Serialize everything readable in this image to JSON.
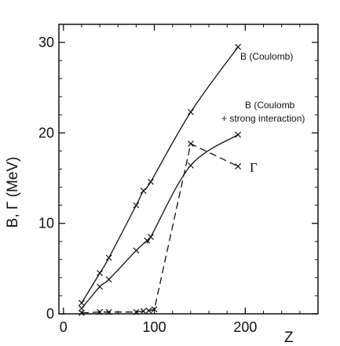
{
  "chart_data": {
    "type": "line",
    "xlabel": "Z",
    "ylabel": "B, Γ (MeV)",
    "xlim": [
      -5,
      280
    ],
    "ylim": [
      0,
      32
    ],
    "x_ticks": [
      0,
      100,
      200
    ],
    "y_ticks": [
      0,
      10,
      20,
      30
    ],
    "grid": false,
    "series": [
      {
        "name": "B (Coulomb)",
        "style": "solid",
        "points": [
          [
            20,
            1.2
          ],
          [
            40,
            4.5
          ],
          [
            50,
            6.2
          ],
          [
            80,
            12.0
          ],
          [
            88,
            13.6
          ],
          [
            96,
            14.6
          ],
          [
            140,
            22.3
          ],
          [
            192,
            29.5
          ]
        ]
      },
      {
        "name": "B (Coulomb + strong interaction)",
        "style": "solid",
        "points": [
          [
            20,
            0.6
          ],
          [
            40,
            3.0
          ],
          [
            50,
            3.8
          ],
          [
            80,
            7.0
          ],
          [
            92,
            8.1
          ],
          [
            96,
            8.5
          ],
          [
            140,
            16.4
          ],
          [
            192,
            19.8
          ]
        ]
      },
      {
        "name": "Γ",
        "style": "dashed",
        "points": [
          [
            20,
            0.1
          ],
          [
            40,
            0.2
          ],
          [
            50,
            0.2
          ],
          [
            80,
            0.2
          ],
          [
            88,
            0.3
          ],
          [
            94,
            0.35
          ],
          [
            100,
            0.5
          ],
          [
            140,
            18.8
          ],
          [
            192,
            16.3
          ]
        ]
      }
    ],
    "annotations": [
      {
        "text": "B (Coulomb)"
      },
      {
        "text": "B (Coulomb"
      },
      {
        "text": "+ strong interaction)"
      },
      {
        "text": "Γ"
      }
    ]
  }
}
